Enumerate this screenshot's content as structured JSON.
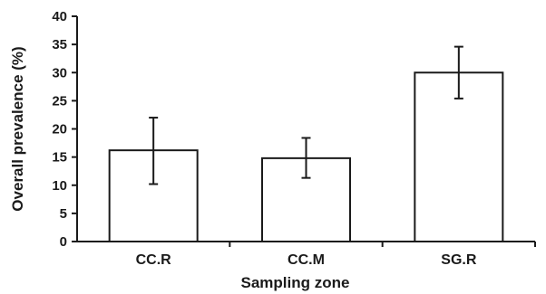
{
  "chart_data": {
    "type": "bar",
    "title": "",
    "xlabel": "Sampling zone",
    "ylabel": "Overall prevalence (%)",
    "categories": [
      "CC.R",
      "CC.M",
      "SG.R"
    ],
    "values": [
      16.2,
      14.8,
      30.0
    ],
    "error_low": [
      10.2,
      11.3,
      25.4
    ],
    "error_high": [
      22.0,
      18.4,
      34.6
    ],
    "ylim": [
      0,
      40
    ],
    "yticks": [
      "0",
      "5",
      "10",
      "15",
      "20",
      "25",
      "30",
      "35",
      "40"
    ],
    "grid": false,
    "colors": {
      "bar_fill": "#ffffff",
      "stroke": "#1a1a1a"
    }
  }
}
